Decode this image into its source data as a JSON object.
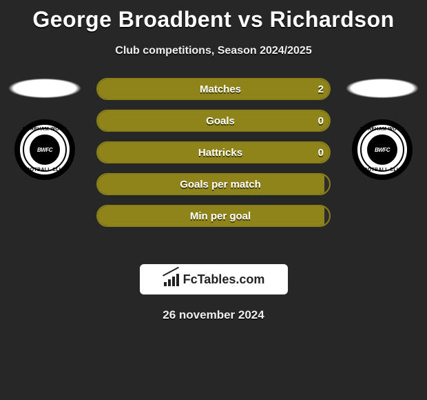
{
  "title": "George Broadbent vs Richardson",
  "subtitle": "Club competitions, Season 2024/2025",
  "date": "26 november 2024",
  "colors": {
    "bar_fill": "#8e841a",
    "bar_border": "#8a8019",
    "background": "#272727"
  },
  "club_badge": {
    "top_text": "BOREHAM WOOD",
    "bottom_text": "FOOTBALL CLUB",
    "inner_text": "BWFC"
  },
  "logo_text": "FcTables.com",
  "stats": [
    {
      "label": "Matches",
      "left_val": "2",
      "fill_pct": 100
    },
    {
      "label": "Goals",
      "left_val": "0",
      "fill_pct": 100
    },
    {
      "label": "Hattricks",
      "left_val": "0",
      "fill_pct": 100
    },
    {
      "label": "Goals per match",
      "left_val": "",
      "fill_pct": 98
    },
    {
      "label": "Min per goal",
      "left_val": "",
      "fill_pct": 98
    }
  ]
}
